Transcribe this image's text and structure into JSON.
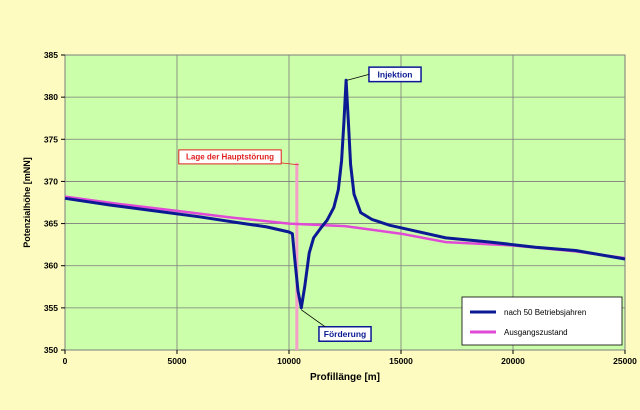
{
  "colors": {
    "background": "#fdfbc0",
    "plot_area": "#ccffaa",
    "grid": "#7c7c7c",
    "series_1": "#0b1a94",
    "series_2": "#e04ad6",
    "fault_marker": "#f5a0c8",
    "label_fault_text": "#e02020"
  },
  "chart_data": {
    "type": "line",
    "title": "",
    "xlabel": "Profillänge [m]",
    "ylabel": "Potenzialhöhe [mNN]",
    "xlim": [
      0,
      25000
    ],
    "ylim": [
      350,
      385
    ],
    "x_ticks": [
      0,
      5000,
      10000,
      15000,
      20000,
      25000
    ],
    "y_ticks": [
      350,
      355,
      360,
      365,
      370,
      375,
      380,
      385
    ],
    "grid": true,
    "legend_position": "bottom-right",
    "series": [
      {
        "name": "nach 50 Betriebsjahren",
        "color": "#0b1a94",
        "points": [
          [
            0,
            368.0
          ],
          [
            2000,
            367.2
          ],
          [
            4000,
            366.5
          ],
          [
            6000,
            365.8
          ],
          [
            8000,
            365.0
          ],
          [
            9000,
            364.6
          ],
          [
            10000,
            364.0
          ],
          [
            10150,
            363.8
          ],
          [
            10250,
            361.0
          ],
          [
            10400,
            357.0
          ],
          [
            10550,
            355.0
          ],
          [
            10700,
            357.5
          ],
          [
            10900,
            361.5
          ],
          [
            11100,
            363.3
          ],
          [
            11400,
            364.4
          ],
          [
            11700,
            365.4
          ],
          [
            12000,
            366.9
          ],
          [
            12200,
            369.0
          ],
          [
            12350,
            372.5
          ],
          [
            12450,
            377.0
          ],
          [
            12550,
            382.0
          ],
          [
            12650,
            377.0
          ],
          [
            12750,
            372.0
          ],
          [
            12900,
            368.5
          ],
          [
            13200,
            366.3
          ],
          [
            13700,
            365.5
          ],
          [
            14500,
            364.8
          ],
          [
            15500,
            364.2
          ],
          [
            17000,
            363.3
          ],
          [
            19000,
            362.8
          ],
          [
            21000,
            362.2
          ],
          [
            22800,
            361.8
          ],
          [
            25000,
            360.8
          ]
        ]
      },
      {
        "name": "Ausgangszustand",
        "color": "#e04ad6",
        "points": [
          [
            0,
            368.2
          ],
          [
            2500,
            367.3
          ],
          [
            5000,
            366.5
          ],
          [
            7500,
            365.7
          ],
          [
            10000,
            365.0
          ],
          [
            12500,
            364.7
          ],
          [
            15000,
            363.8
          ],
          [
            17000,
            362.8
          ],
          [
            20000,
            362.4
          ],
          [
            22800,
            361.7
          ],
          [
            25000,
            360.9
          ]
        ]
      }
    ],
    "fault_line": {
      "x": 10350,
      "y_top": 372.2
    },
    "annotations": [
      {
        "key": "fault",
        "text": "Lage der Hauptstörung"
      },
      {
        "key": "injection",
        "text": "Injektion"
      },
      {
        "key": "production",
        "text": "Förderung"
      }
    ]
  }
}
